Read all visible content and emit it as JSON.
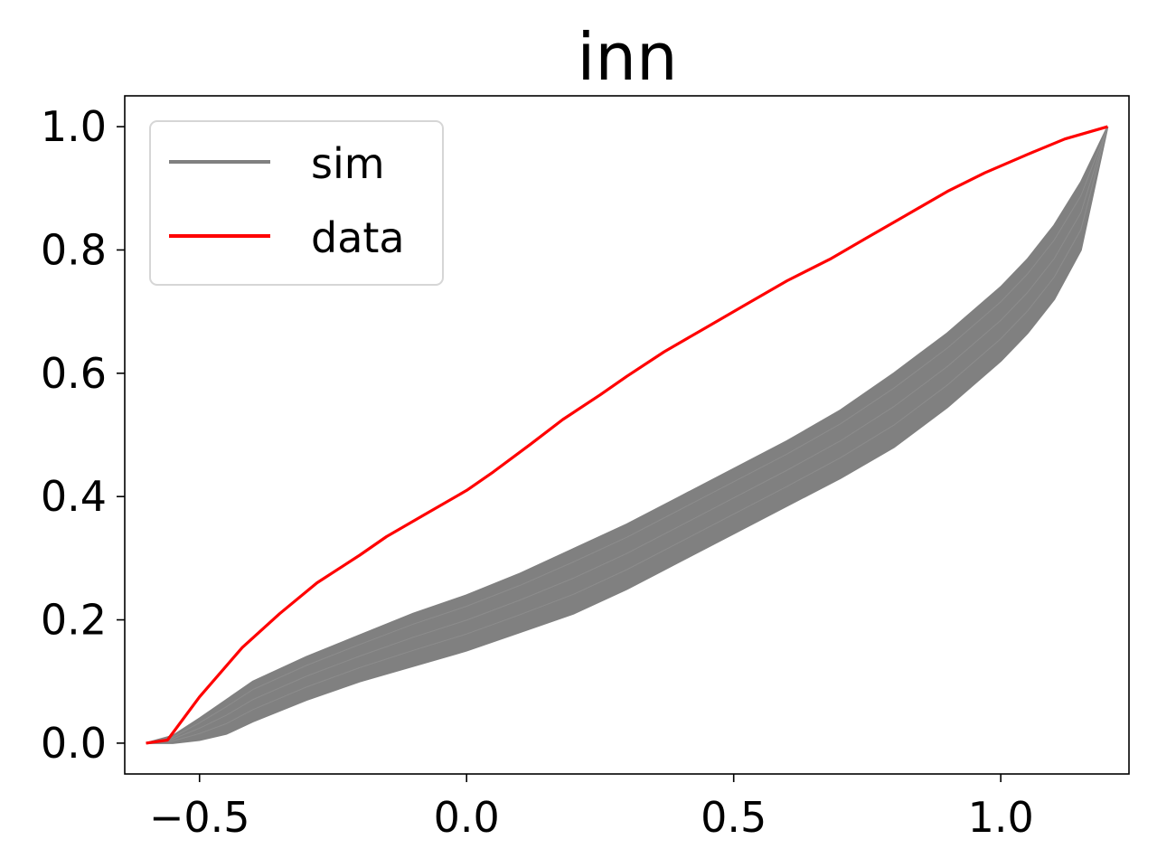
{
  "chart_data": {
    "type": "line",
    "title": "inn",
    "xlabel": "",
    "ylabel": "",
    "xlim": [
      -0.64,
      1.24
    ],
    "ylim": [
      -0.05,
      1.05
    ],
    "x_ticks": [
      -0.5,
      0.0,
      0.5,
      1.0
    ],
    "x_tick_labels": [
      "−0.5",
      "0.0",
      "0.5",
      "1.0"
    ],
    "y_ticks": [
      0.0,
      0.2,
      0.4,
      0.6,
      0.8,
      1.0
    ],
    "y_tick_labels": [
      "0.0",
      "0.2",
      "0.4",
      "0.6",
      "0.8",
      "1.0"
    ],
    "grid": false,
    "legend": {
      "position": "top-left",
      "entries": [
        {
          "label": "sim",
          "color": "#808080"
        },
        {
          "label": "data",
          "color": "#ff0000"
        }
      ]
    },
    "series": [
      {
        "name": "sim",
        "color": "#808080",
        "band": true,
        "x": [
          -0.6,
          -0.55,
          -0.5,
          -0.45,
          -0.4,
          -0.3,
          -0.2,
          -0.1,
          0.0,
          0.1,
          0.2,
          0.3,
          0.4,
          0.5,
          0.6,
          0.7,
          0.8,
          0.9,
          1.0,
          1.05,
          1.1,
          1.15,
          1.2
        ],
        "upper": [
          0.0,
          0.012,
          0.04,
          0.07,
          0.1,
          0.14,
          0.175,
          0.21,
          0.24,
          0.275,
          0.315,
          0.355,
          0.4,
          0.445,
          0.49,
          0.54,
          0.6,
          0.665,
          0.74,
          0.785,
          0.84,
          0.91,
          1.0
        ],
        "lower": [
          0.0,
          0.0,
          0.005,
          0.015,
          0.035,
          0.07,
          0.1,
          0.125,
          0.15,
          0.18,
          0.21,
          0.25,
          0.295,
          0.34,
          0.385,
          0.43,
          0.48,
          0.545,
          0.62,
          0.665,
          0.72,
          0.8,
          1.0
        ]
      },
      {
        "name": "data",
        "color": "#ff0000",
        "x": [
          -0.6,
          -0.56,
          -0.5,
          -0.42,
          -0.35,
          -0.28,
          -0.2,
          -0.15,
          -0.08,
          0.0,
          0.05,
          0.12,
          0.18,
          0.25,
          0.3,
          0.37,
          0.45,
          0.52,
          0.6,
          0.68,
          0.75,
          0.82,
          0.9,
          0.97,
          1.05,
          1.12,
          1.2
        ],
        "y": [
          0.0,
          0.005,
          0.075,
          0.155,
          0.21,
          0.26,
          0.305,
          0.335,
          0.37,
          0.41,
          0.44,
          0.485,
          0.525,
          0.565,
          0.595,
          0.635,
          0.675,
          0.71,
          0.75,
          0.785,
          0.82,
          0.855,
          0.895,
          0.925,
          0.955,
          0.98,
          1.0
        ]
      }
    ]
  }
}
